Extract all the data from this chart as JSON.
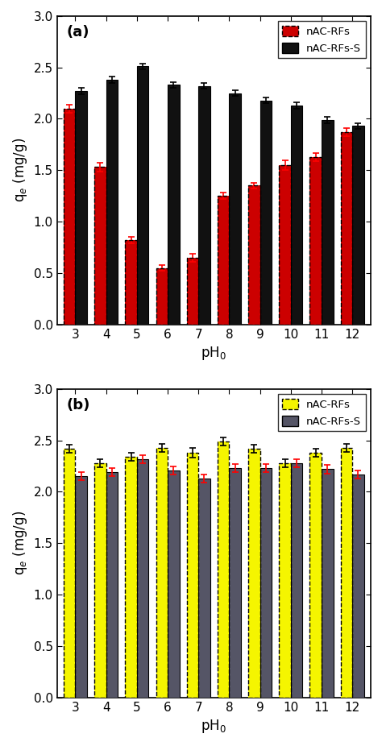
{
  "ph_labels": [
    "3",
    "4",
    "5",
    "6",
    "7",
    "8",
    "9",
    "10",
    "11",
    "12"
  ],
  "panel_a": {
    "red_values": [
      2.1,
      1.53,
      0.82,
      0.55,
      0.65,
      1.25,
      1.35,
      1.55,
      1.63,
      1.87
    ],
    "black_values": [
      2.27,
      2.38,
      2.51,
      2.33,
      2.32,
      2.25,
      2.18,
      2.13,
      1.99,
      1.93
    ],
    "red_errors": [
      0.04,
      0.04,
      0.03,
      0.03,
      0.04,
      0.03,
      0.03,
      0.05,
      0.04,
      0.04
    ],
    "black_errors": [
      0.03,
      0.03,
      0.03,
      0.03,
      0.03,
      0.03,
      0.03,
      0.03,
      0.03,
      0.03
    ],
    "label1": "nAC-RFs",
    "label2": "nAC-RFs-S",
    "color1": "#cc0000",
    "color2": "#111111",
    "panel_label": "(a)"
  },
  "panel_b": {
    "yellow_values": [
      2.42,
      2.28,
      2.34,
      2.43,
      2.38,
      2.49,
      2.42,
      2.28,
      2.38,
      2.43
    ],
    "gray_values": [
      2.15,
      2.19,
      2.32,
      2.21,
      2.13,
      2.23,
      2.23,
      2.28,
      2.22,
      2.17
    ],
    "yellow_errors": [
      0.04,
      0.04,
      0.04,
      0.04,
      0.05,
      0.04,
      0.04,
      0.04,
      0.04,
      0.04
    ],
    "gray_errors": [
      0.04,
      0.04,
      0.04,
      0.04,
      0.04,
      0.04,
      0.04,
      0.04,
      0.04,
      0.04
    ],
    "label1": "nAC-RFs",
    "label2": "nAC-RFs-S",
    "color1": "#f5f500",
    "color2": "#555566",
    "panel_label": "(b)"
  },
  "ylabel": "q$_e$ (mg/g)",
  "xlabel": "pH$_0$",
  "ylim": [
    0.0,
    3.0
  ],
  "yticks": [
    0.0,
    0.5,
    1.0,
    1.5,
    2.0,
    2.5,
    3.0
  ],
  "bar_width": 0.38,
  "figsize": [
    4.74,
    9.26
  ],
  "dpi": 100
}
